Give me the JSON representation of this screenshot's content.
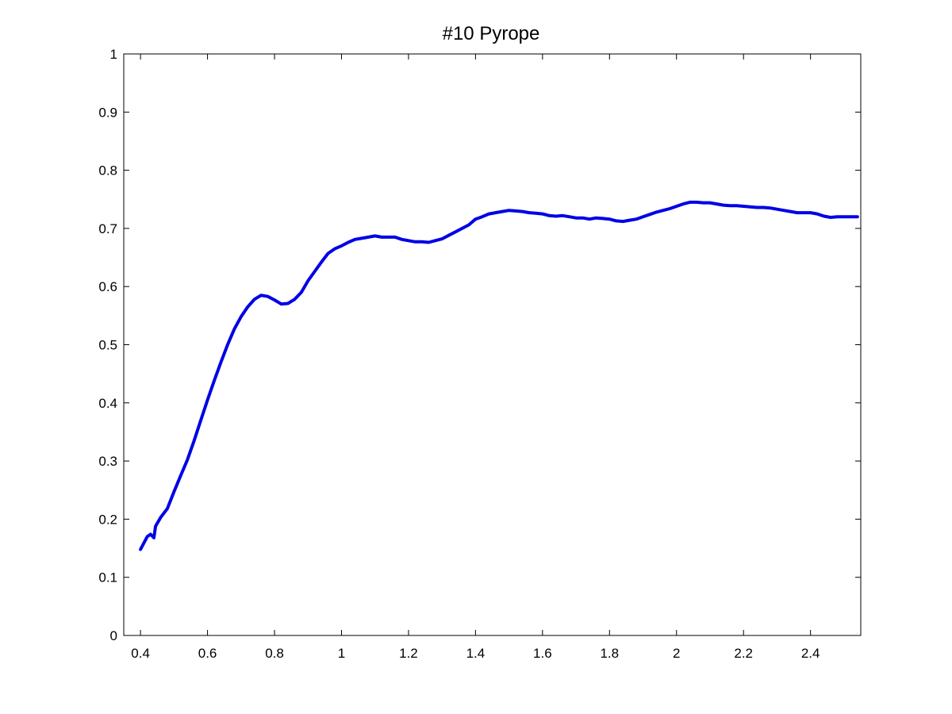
{
  "chart_data": {
    "type": "line",
    "title": "#10 Pyrope",
    "xlabel": "",
    "ylabel": "",
    "xlim": [
      0.35,
      2.55
    ],
    "ylim": [
      0,
      1
    ],
    "grid": false,
    "legend": "none",
    "xticks": [
      0.4,
      0.6,
      0.8,
      1,
      1.2,
      1.4,
      1.6,
      1.8,
      2,
      2.2,
      2.4
    ],
    "xtick_labels": [
      "0.4",
      "0.6",
      "0.8",
      "1",
      "1.2",
      "1.4",
      "1.6",
      "1.8",
      "2",
      "2.2",
      "2.4"
    ],
    "yticks": [
      0,
      0.1,
      0.2,
      0.3,
      0.4,
      0.5,
      0.6,
      0.7,
      0.8,
      0.9,
      1
    ],
    "ytick_labels": [
      "0",
      "0.1",
      "0.2",
      "0.3",
      "0.4",
      "0.5",
      "0.6",
      "0.7",
      "0.8",
      "0.9",
      "1"
    ],
    "series": [
      {
        "color": "#0000e6",
        "x": [
          0.4,
          0.42,
          0.43,
          0.44,
          0.445,
          0.46,
          0.48,
          0.5,
          0.52,
          0.54,
          0.56,
          0.58,
          0.6,
          0.62,
          0.64,
          0.66,
          0.68,
          0.7,
          0.72,
          0.74,
          0.76,
          0.78,
          0.8,
          0.82,
          0.84,
          0.86,
          0.88,
          0.9,
          0.92,
          0.94,
          0.96,
          0.98,
          1.0,
          1.02,
          1.04,
          1.06,
          1.08,
          1.1,
          1.12,
          1.14,
          1.16,
          1.18,
          1.2,
          1.22,
          1.24,
          1.26,
          1.28,
          1.3,
          1.32,
          1.34,
          1.36,
          1.38,
          1.4,
          1.42,
          1.44,
          1.46,
          1.48,
          1.5,
          1.52,
          1.54,
          1.56,
          1.58,
          1.6,
          1.62,
          1.64,
          1.66,
          1.68,
          1.7,
          1.72,
          1.74,
          1.76,
          1.78,
          1.8,
          1.82,
          1.84,
          1.86,
          1.88,
          1.9,
          1.92,
          1.94,
          1.96,
          1.98,
          2.0,
          2.02,
          2.04,
          2.06,
          2.08,
          2.1,
          2.12,
          2.14,
          2.16,
          2.18,
          2.2,
          2.22,
          2.24,
          2.26,
          2.28,
          2.3,
          2.32,
          2.34,
          2.36,
          2.38,
          2.4,
          2.42,
          2.44,
          2.46,
          2.48,
          2.5,
          2.52,
          2.54
        ],
        "values": [
          0.148,
          0.17,
          0.174,
          0.168,
          0.188,
          0.203,
          0.218,
          0.247,
          0.275,
          0.302,
          0.335,
          0.37,
          0.405,
          0.438,
          0.47,
          0.5,
          0.527,
          0.548,
          0.565,
          0.578,
          0.585,
          0.583,
          0.577,
          0.57,
          0.571,
          0.578,
          0.59,
          0.61,
          0.626,
          0.642,
          0.657,
          0.665,
          0.67,
          0.676,
          0.681,
          0.683,
          0.685,
          0.687,
          0.685,
          0.685,
          0.685,
          0.681,
          0.679,
          0.677,
          0.677,
          0.676,
          0.679,
          0.682,
          0.688,
          0.694,
          0.7,
          0.706,
          0.716,
          0.72,
          0.725,
          0.727,
          0.729,
          0.731,
          0.73,
          0.729,
          0.727,
          0.726,
          0.725,
          0.722,
          0.721,
          0.722,
          0.72,
          0.718,
          0.718,
          0.716,
          0.718,
          0.717,
          0.716,
          0.713,
          0.712,
          0.714,
          0.716,
          0.72,
          0.724,
          0.728,
          0.731,
          0.734,
          0.738,
          0.742,
          0.745,
          0.745,
          0.744,
          0.744,
          0.742,
          0.74,
          0.739,
          0.739,
          0.738,
          0.737,
          0.736,
          0.736,
          0.735,
          0.733,
          0.731,
          0.729,
          0.727,
          0.727,
          0.727,
          0.725,
          0.721,
          0.719,
          0.72,
          0.72,
          0.72,
          0.72
        ]
      }
    ]
  }
}
